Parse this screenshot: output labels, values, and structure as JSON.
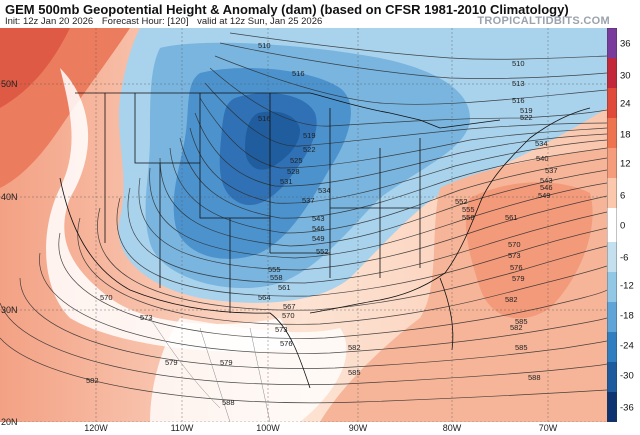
{
  "header": {
    "title": "GEM 500mb Geopotential Height & Anomaly (dam) (based on CFSR 1981-2010 Climatology)",
    "init": "Init: 12z Jan 20 2026",
    "forecast_hour": "Forecast Hour: [120]",
    "valid": "valid at 12z Sun, Jan 25 2026",
    "brand": "TROPICALTIDBITS.COM"
  },
  "colorbar": {
    "labels": [
      "36",
      "30",
      "24",
      "18",
      "12",
      "6",
      "0",
      "-6",
      "-12",
      "-18",
      "-24",
      "-30",
      "-36"
    ],
    "colors": [
      "#7a3c9c",
      "#c2283a",
      "#df4a3a",
      "#ee7450",
      "#f59c7c",
      "#fbc8ad",
      "#ffffff",
      "#c4e0ef",
      "#93c7e6",
      "#5fa5d7",
      "#2f7fc0",
      "#1d5a9e",
      "#0d3470"
    ]
  },
  "map": {
    "lat_labels": [
      "50N",
      "40N",
      "30N",
      "20N"
    ],
    "lon_labels": [
      "120W",
      "110W",
      "100W",
      "90W",
      "80W",
      "70W"
    ],
    "contour_labels": [
      "510",
      "510",
      "513",
      "516",
      "516",
      "516",
      "519",
      "519",
      "522",
      "522",
      "525",
      "528",
      "531",
      "534",
      "534",
      "537",
      "540",
      "543",
      "546",
      "549",
      "552",
      "555",
      "558",
      "561",
      "564",
      "567",
      "570",
      "573",
      "576",
      "579",
      "582",
      "585",
      "588",
      "582",
      "570",
      "573",
      "579",
      "582",
      "585",
      "588",
      "537",
      "543",
      "546",
      "549",
      "552",
      "555",
      "558",
      "561",
      "570",
      "573",
      "576",
      "579",
      "582",
      "585"
    ]
  }
}
